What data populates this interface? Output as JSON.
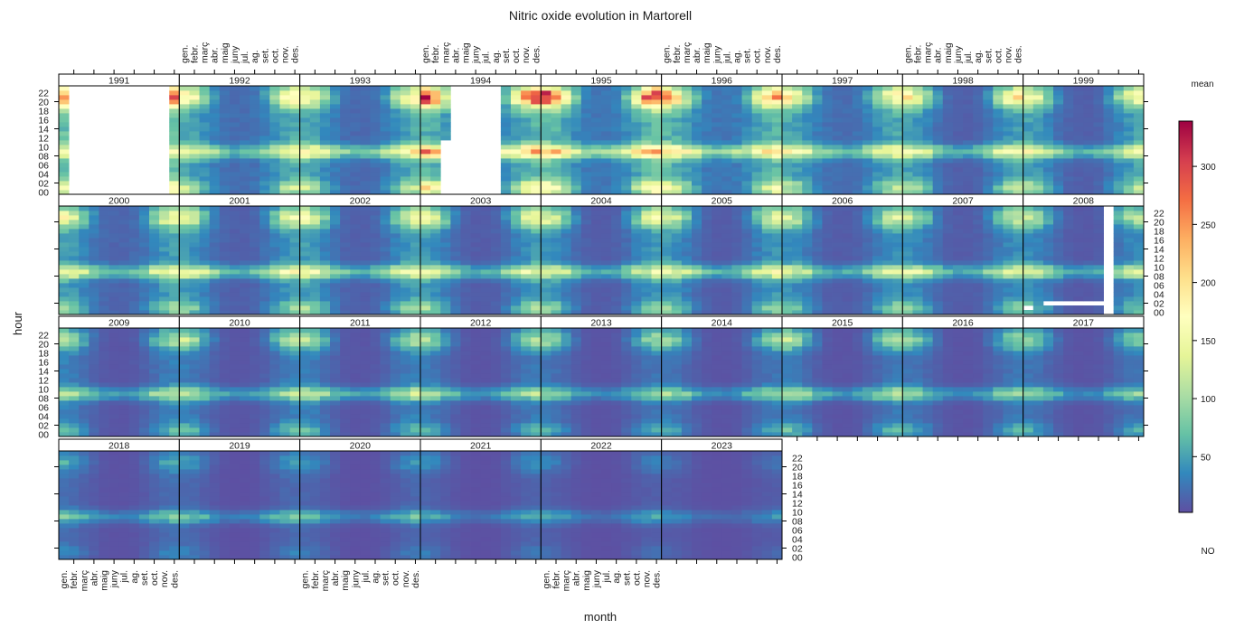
{
  "chart_data": {
    "type": "heatmap",
    "title": "Nitric oxide evolution in Martorell",
    "xlabel": "month",
    "ylabel": "hour",
    "legend": {
      "title": "mean",
      "variable": "NO",
      "placement": "right",
      "range": [
        2,
        339
      ],
      "ticks": [
        50,
        100,
        150,
        200,
        250,
        300
      ],
      "palette": [
        "#5E4FA2",
        "#3288BD",
        "#66C2A5",
        "#ABDDA4",
        "#E6F598",
        "#FFFFBF",
        "#FEE08B",
        "#FDAE61",
        "#F46D43",
        "#D53E4F",
        "#9E0142"
      ]
    },
    "month_labels": [
      "gen.",
      "febr.",
      "març",
      "abr.",
      "maig",
      "juny",
      "jul.",
      "ag.",
      "set.",
      "oct.",
      "nov.",
      "des."
    ],
    "hour_labels": [
      "00",
      "02",
      "04",
      "06",
      "08",
      "10",
      "12",
      "14",
      "16",
      "18",
      "20",
      "22"
    ],
    "layout_grid": {
      "columns": 9,
      "rows": 4
    },
    "years": [
      {
        "year": "1991",
        "summer_low": 45,
        "winter_low": 70,
        "morning_peak": 150,
        "evening_peak": 300,
        "missing": [
          {
            "months": [
              1,
              10
            ],
            "hours": [
              0,
              23
            ]
          }
        ]
      },
      {
        "year": "1992",
        "summer_low": 20,
        "winter_low": 55,
        "morning_peak": 160,
        "evening_peak": 200,
        "missing": []
      },
      {
        "year": "1993",
        "summer_low": 18,
        "winter_low": 55,
        "morning_peak": 190,
        "evening_peak": 190,
        "missing": []
      },
      {
        "year": "1994",
        "summer_low": 30,
        "winter_low": 60,
        "morning_peak": 260,
        "evening_peak": 330,
        "missing": [
          {
            "months": [
              3,
              7
            ],
            "hours": [
              0,
              23
            ]
          },
          {
            "months": [
              2,
              2
            ],
            "hours": [
              0,
              11
            ]
          }
        ]
      },
      {
        "year": "1995",
        "summer_low": 25,
        "winter_low": 70,
        "morning_peak": 230,
        "evening_peak": 335,
        "missing": []
      },
      {
        "year": "1996",
        "summer_low": 25,
        "winter_low": 65,
        "morning_peak": 220,
        "evening_peak": 250,
        "missing": []
      },
      {
        "year": "1997",
        "summer_low": 20,
        "winter_low": 55,
        "morning_peak": 175,
        "evening_peak": 190,
        "missing": []
      },
      {
        "year": "1998",
        "summer_low": 12,
        "winter_low": 50,
        "morning_peak": 170,
        "evening_peak": 200,
        "missing": []
      },
      {
        "year": "1999",
        "summer_low": 12,
        "winter_low": 50,
        "morning_peak": 160,
        "evening_peak": 175,
        "missing": []
      },
      {
        "year": "2000",
        "summer_low": 15,
        "winter_low": 50,
        "morning_peak": 165,
        "evening_peak": 165,
        "missing": []
      },
      {
        "year": "2001",
        "summer_low": 12,
        "winter_low": 45,
        "morning_peak": 160,
        "evening_peak": 150,
        "missing": []
      },
      {
        "year": "2002",
        "summer_low": 12,
        "winter_low": 48,
        "morning_peak": 165,
        "evening_peak": 160,
        "missing": []
      },
      {
        "year": "2003",
        "summer_low": 10,
        "winter_low": 45,
        "morning_peak": 155,
        "evening_peak": 160,
        "missing": []
      },
      {
        "year": "2004",
        "summer_low": 10,
        "winter_low": 45,
        "morning_peak": 150,
        "evening_peak": 150,
        "missing": []
      },
      {
        "year": "2005",
        "summer_low": 10,
        "winter_low": 45,
        "morning_peak": 165,
        "evening_peak": 150,
        "missing": []
      },
      {
        "year": "2006",
        "summer_low": 10,
        "winter_low": 42,
        "morning_peak": 145,
        "evening_peak": 140,
        "missing": []
      },
      {
        "year": "2007",
        "summer_low": 10,
        "winter_low": 40,
        "morning_peak": 150,
        "evening_peak": 130,
        "missing": []
      },
      {
        "year": "2008",
        "summer_low": 8,
        "winter_low": 38,
        "morning_peak": 140,
        "evening_peak": 120,
        "missing": [
          {
            "months": [
              8,
              8
            ],
            "hours": [
              0,
              23
            ]
          },
          {
            "months": [
              2,
              7
            ],
            "hours": [
              2,
              2
            ]
          },
          {
            "months": [
              0,
              0
            ],
            "hours": [
              1,
              1
            ]
          }
        ]
      },
      {
        "year": "2009",
        "summer_low": 6,
        "winter_low": 32,
        "morning_peak": 120,
        "evening_peak": 110,
        "missing": []
      },
      {
        "year": "2010",
        "summer_low": 6,
        "winter_low": 30,
        "morning_peak": 115,
        "evening_peak": 120,
        "missing": []
      },
      {
        "year": "2011",
        "summer_low": 6,
        "winter_low": 32,
        "morning_peak": 130,
        "evening_peak": 110,
        "missing": []
      },
      {
        "year": "2012",
        "summer_low": 5,
        "winter_low": 28,
        "morning_peak": 110,
        "evening_peak": 105,
        "missing": []
      },
      {
        "year": "2013",
        "summer_low": 5,
        "winter_low": 25,
        "morning_peak": 95,
        "evening_peak": 100,
        "missing": []
      },
      {
        "year": "2014",
        "summer_low": 5,
        "winter_low": 26,
        "morning_peak": 105,
        "evening_peak": 95,
        "missing": []
      },
      {
        "year": "2015",
        "summer_low": 5,
        "winter_low": 28,
        "morning_peak": 120,
        "evening_peak": 125,
        "missing": []
      },
      {
        "year": "2016",
        "summer_low": 5,
        "winter_low": 26,
        "morning_peak": 100,
        "evening_peak": 95,
        "missing": []
      },
      {
        "year": "2017",
        "summer_low": 5,
        "winter_low": 25,
        "morning_peak": 95,
        "evening_peak": 90,
        "missing": []
      },
      {
        "year": "2018",
        "summer_low": 4,
        "winter_low": 20,
        "morning_peak": 85,
        "evening_peak": 60,
        "missing": []
      },
      {
        "year": "2019",
        "summer_low": 3,
        "winter_low": 18,
        "morning_peak": 80,
        "evening_peak": 50,
        "missing": []
      },
      {
        "year": "2020",
        "summer_low": 3,
        "winter_low": 16,
        "morning_peak": 75,
        "evening_peak": 45,
        "missing": []
      },
      {
        "year": "2021",
        "summer_low": 3,
        "winter_low": 14,
        "morning_peak": 60,
        "evening_peak": 45,
        "missing": []
      },
      {
        "year": "2022",
        "summer_low": 3,
        "winter_low": 12,
        "morning_peak": 60,
        "evening_peak": 35,
        "missing": []
      },
      {
        "year": "2023",
        "summer_low": 3,
        "winter_low": 10,
        "morning_peak": 45,
        "evening_peak": 25,
        "missing": []
      }
    ]
  }
}
